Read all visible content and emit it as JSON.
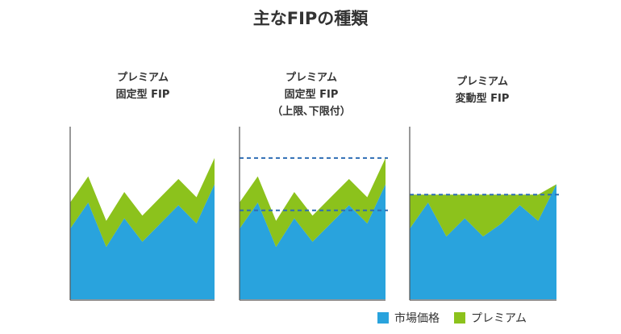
{
  "title": "主なFIPの種類",
  "legend": {
    "market": {
      "label": "市場価格",
      "color": "#29A3DD"
    },
    "premium": {
      "label": "プレミアム",
      "color": "#8CC21C"
    }
  },
  "chart_data": [
    {
      "type": "area",
      "title_lines": [
        "プレミアム",
        "固定型 FIP"
      ],
      "x": [
        0,
        1,
        2,
        3,
        4,
        5,
        6,
        7,
        8
      ],
      "series": [
        {
          "name": "市場価格",
          "values": [
            27,
            37,
            20,
            31,
            22,
            29,
            36,
            29,
            44
          ]
        },
        {
          "name": "プレミアム",
          "values": [
            10,
            10,
            10,
            10,
            10,
            10,
            10,
            10,
            10
          ]
        }
      ],
      "ylim": [
        0,
        66
      ],
      "lines": []
    },
    {
      "type": "area",
      "title_lines": [
        "プレミアム",
        "固定型 FIP",
        "（上限､下限付）"
      ],
      "x": [
        0,
        1,
        2,
        3,
        4,
        5,
        6,
        7,
        8
      ],
      "series": [
        {
          "name": "市場価格",
          "values": [
            27,
            37,
            20,
            31,
            22,
            29,
            36,
            29,
            44
          ]
        },
        {
          "name": "プレミアム",
          "values": [
            10,
            10,
            10,
            10,
            10,
            10,
            10,
            10,
            10
          ]
        }
      ],
      "ylim": [
        0,
        66
      ],
      "lines": [
        54,
        34
      ]
    },
    {
      "type": "area",
      "title_lines": [
        "プレミアム",
        "変動型 FIP"
      ],
      "x": [
        0,
        1,
        2,
        3,
        4,
        5,
        6,
        7,
        8
      ],
      "series": [
        {
          "name": "市場価格",
          "values": [
            27,
            37,
            24,
            31,
            24,
            29,
            36,
            30,
            44
          ]
        },
        {
          "name": "プレミアム",
          "values": [
            13,
            3,
            16,
            9,
            16,
            11,
            4,
            10,
            0
          ]
        }
      ],
      "ylim": [
        0,
        66
      ],
      "lines": [
        40
      ]
    }
  ]
}
